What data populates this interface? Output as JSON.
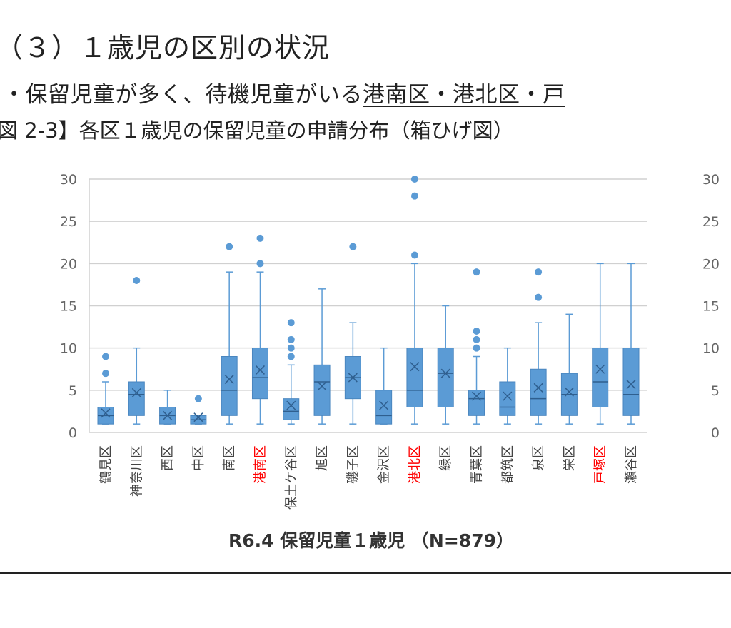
{
  "heading": "（３）１歳児の区別の状況",
  "bullet": {
    "plain": "・保留児童が多く、待機児童がいる",
    "underlined": "港南区・港北区・戸"
  },
  "caption": "図 2-3】各区１歳児の保留児童の申請分布（箱ひげ図）",
  "colors": {
    "box": "#5b9bd5",
    "box_edge": "#4a86bf",
    "grid": "#d0d0d0",
    "tick_text": "#666666",
    "highlight": "#ff0000",
    "label": "#444444"
  },
  "chart_data": {
    "type": "boxplot",
    "title": "",
    "xlabel": "R6.4 保留児童１歳児 （N=879）",
    "ylabel": "",
    "ylim": [
      0,
      30
    ],
    "yticks": [
      0,
      5,
      10,
      15,
      20,
      25,
      30
    ],
    "grid": true,
    "legend": "none",
    "series": [
      {
        "category": "鶴見区",
        "min": 1,
        "q1": 1,
        "median": 2,
        "q3": 3,
        "max": 6,
        "mean": 2.3,
        "outliers": [
          7,
          9
        ],
        "highlight": false
      },
      {
        "category": "神奈川区",
        "min": 1,
        "q1": 2,
        "median": 4.5,
        "q3": 6,
        "max": 10,
        "mean": 4.7,
        "outliers": [
          18
        ],
        "highlight": false
      },
      {
        "category": "西区",
        "min": 1,
        "q1": 1,
        "median": 2,
        "q3": 3,
        "max": 5,
        "mean": 2,
        "outliers": [],
        "highlight": false
      },
      {
        "category": "中区",
        "min": 1,
        "q1": 1,
        "median": 1.5,
        "q3": 2,
        "max": 2,
        "mean": 1.8,
        "outliers": [
          4
        ],
        "highlight": false
      },
      {
        "category": "南区",
        "min": 1,
        "q1": 2,
        "median": 5,
        "q3": 9,
        "max": 19,
        "mean": 6.3,
        "outliers": [
          22
        ],
        "highlight": false
      },
      {
        "category": "港南区",
        "min": 1,
        "q1": 4,
        "median": 6.5,
        "q3": 10,
        "max": 19,
        "mean": 7.4,
        "outliers": [
          20,
          23
        ],
        "highlight": true
      },
      {
        "category": "保土ケ谷区",
        "min": 1,
        "q1": 1.5,
        "median": 2.5,
        "q3": 4,
        "max": 8,
        "mean": 3.2,
        "outliers": [
          9,
          10,
          11,
          13
        ],
        "highlight": false
      },
      {
        "category": "旭区",
        "min": 1,
        "q1": 2,
        "median": 6,
        "q3": 8,
        "max": 17,
        "mean": 5.5,
        "outliers": [],
        "highlight": false
      },
      {
        "category": "磯子区",
        "min": 1,
        "q1": 4,
        "median": 6.5,
        "q3": 9,
        "max": 13,
        "mean": 6.5,
        "outliers": [
          22
        ],
        "highlight": false
      },
      {
        "category": "金沢区",
        "min": 1,
        "q1": 1,
        "median": 2,
        "q3": 5,
        "max": 10,
        "mean": 3.2,
        "outliers": [],
        "highlight": false
      },
      {
        "category": "港北区",
        "min": 1,
        "q1": 3,
        "median": 5,
        "q3": 10,
        "max": 20,
        "mean": 7.8,
        "outliers": [
          21,
          28,
          30
        ],
        "highlight": true
      },
      {
        "category": "緑区",
        "min": 1,
        "q1": 3,
        "median": 7,
        "q3": 10,
        "max": 15,
        "mean": 7,
        "outliers": [],
        "highlight": false
      },
      {
        "category": "青葉区",
        "min": 1,
        "q1": 2,
        "median": 4,
        "q3": 5,
        "max": 9,
        "mean": 4.3,
        "outliers": [
          10,
          11,
          12,
          19
        ],
        "highlight": false
      },
      {
        "category": "都筑区",
        "min": 1,
        "q1": 2,
        "median": 3,
        "q3": 6,
        "max": 10,
        "mean": 4.3,
        "outliers": [],
        "highlight": false
      },
      {
        "category": "泉区",
        "min": 1,
        "q1": 2,
        "median": 4,
        "q3": 7.5,
        "max": 13,
        "mean": 5.3,
        "outliers": [
          16,
          19
        ],
        "highlight": false
      },
      {
        "category": "栄区",
        "min": 1,
        "q1": 2,
        "median": 4.5,
        "q3": 7,
        "max": 14,
        "mean": 4.8,
        "outliers": [],
        "highlight": false
      },
      {
        "category": "戸塚区",
        "min": 1,
        "q1": 3,
        "median": 6,
        "q3": 10,
        "max": 20,
        "mean": 7.5,
        "outliers": [],
        "highlight": true
      },
      {
        "category": "瀬谷区",
        "min": 1,
        "q1": 2,
        "median": 4.5,
        "q3": 10,
        "max": 20,
        "mean": 5.7,
        "outliers": [],
        "highlight": false
      }
    ]
  }
}
